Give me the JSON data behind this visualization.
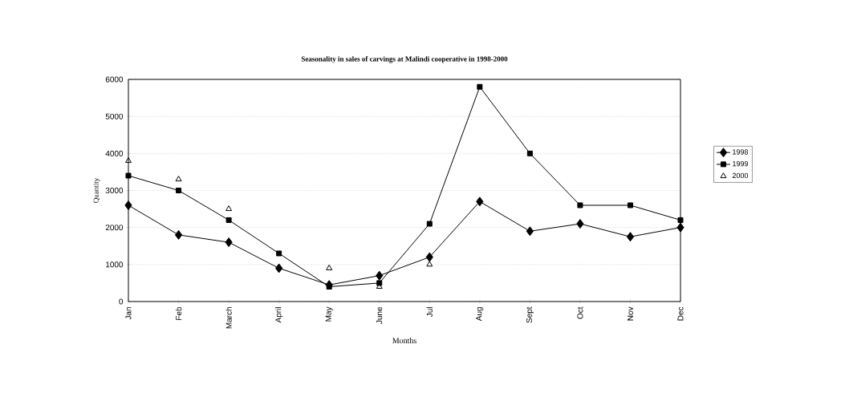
{
  "chart_data": {
    "type": "line",
    "title": "Seasonality in sales of carvings at Malindi cooperative in 1998-2000",
    "xlabel": "Months",
    "ylabel": "Quantity",
    "categories": [
      "Jan",
      "Feb",
      "March",
      "April",
      "May",
      "June",
      "Jul",
      "Aug",
      "Sept",
      "Oct",
      "Nov",
      "Dec"
    ],
    "series": [
      {
        "name": "1998",
        "color": "#000000",
        "marker": "diamond",
        "values": [
          2600,
          1800,
          1600,
          900,
          450,
          700,
          1200,
          2700,
          1900,
          2100,
          1750,
          2000
        ]
      },
      {
        "name": "1999",
        "color": "#000000",
        "marker": "square",
        "values": [
          3400,
          3000,
          2200,
          1300,
          400,
          500,
          2100,
          5800,
          4000,
          2600,
          2600,
          2200
        ]
      },
      {
        "name": "2000",
        "color": "#000000",
        "type": "scatter",
        "marker": "triangle",
        "values": [
          3800,
          3300,
          2500,
          null,
          900,
          400,
          1000,
          null,
          null,
          null,
          null,
          null
        ]
      }
    ],
    "ylim": [
      0,
      6000
    ],
    "yticks": [
      0,
      1000,
      2000,
      3000,
      4000,
      5000,
      6000
    ],
    "grid": "y",
    "legend": "right",
    "line_style": "solid"
  }
}
